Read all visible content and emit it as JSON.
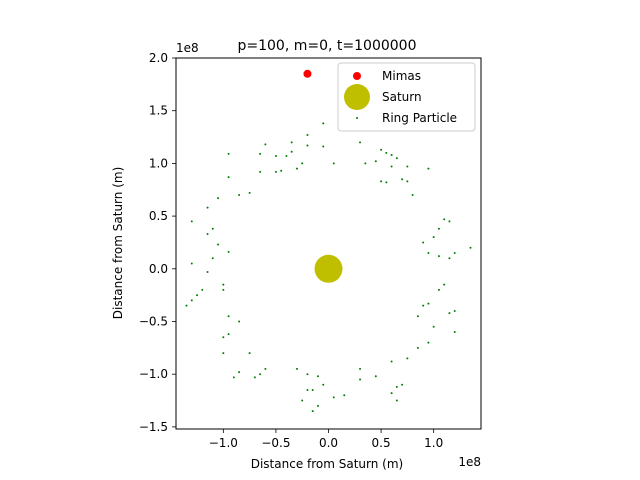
{
  "chart_data": {
    "type": "scatter",
    "title": "p=100, m=0, t=1000000",
    "xlabel": "Distance from Saturn (m)",
    "ylabel": "Distance from Saturn (m)",
    "x_offset_text": "1e8",
    "y_offset_text": "1e8",
    "xlim": [
      -1.45,
      1.45
    ],
    "ylim": [
      -1.52,
      2.0
    ],
    "xticks": [
      -1.0,
      -0.5,
      0.0,
      0.5,
      1.0
    ],
    "xtick_labels": [
      "−1.0",
      "−0.5",
      "0.0",
      "0.5",
      "1.0"
    ],
    "yticks": [
      -1.5,
      -1.0,
      -0.5,
      0.0,
      0.5,
      1.0,
      1.5,
      2.0
    ],
    "ytick_labels": [
      "−1.5",
      "−1.0",
      "−0.5",
      "0.0",
      "0.5",
      "1.0",
      "1.5",
      "2.0"
    ],
    "grid": false,
    "legend_position": "upper right",
    "series": [
      {
        "name": "Mimas",
        "color": "#ff0000",
        "marker": "circle-medium",
        "points": [
          [
            -0.2,
            1.85
          ]
        ]
      },
      {
        "name": "Saturn",
        "color": "#bfbf00",
        "marker": "circle-large",
        "points": [
          [
            0.0,
            0.0
          ]
        ]
      },
      {
        "name": "Ring Particle",
        "color": "#008000",
        "marker": "dot",
        "points": [
          [
            -0.05,
            1.38
          ],
          [
            -0.2,
            1.27
          ],
          [
            0.3,
            1.2
          ],
          [
            -0.35,
            1.2
          ],
          [
            -0.6,
            1.18
          ],
          [
            -0.2,
            1.17
          ],
          [
            -0.05,
            1.16
          ],
          [
            -0.35,
            1.11
          ],
          [
            -0.65,
            1.09
          ],
          [
            -0.95,
            1.09
          ],
          [
            -0.4,
            1.07
          ],
          [
            -0.5,
            1.07
          ],
          [
            -0.25,
            1.0
          ],
          [
            -0.3,
            0.95
          ],
          [
            -0.45,
            0.93
          ],
          [
            -0.5,
            0.92
          ],
          [
            -0.65,
            0.92
          ],
          [
            -0.95,
            0.87
          ],
          [
            0.05,
            1.0
          ],
          [
            0.5,
            1.13
          ],
          [
            0.55,
            1.1
          ],
          [
            0.6,
            1.08
          ],
          [
            0.65,
            1.05
          ],
          [
            0.45,
            1.02
          ],
          [
            0.35,
            1.0
          ],
          [
            0.6,
            0.97
          ],
          [
            0.75,
            0.97
          ],
          [
            0.95,
            0.95
          ],
          [
            0.5,
            0.83
          ],
          [
            0.55,
            0.82
          ],
          [
            0.7,
            0.85
          ],
          [
            0.75,
            0.83
          ],
          [
            0.8,
            0.7
          ],
          [
            -0.75,
            0.72
          ],
          [
            -0.85,
            0.7
          ],
          [
            -1.05,
            0.67
          ],
          [
            -1.15,
            0.58
          ],
          [
            -1.3,
            0.45
          ],
          [
            1.1,
            0.47
          ],
          [
            1.15,
            0.45
          ],
          [
            1.05,
            0.38
          ],
          [
            1.0,
            0.3
          ],
          [
            0.9,
            0.25
          ],
          [
            1.35,
            0.2
          ],
          [
            1.2,
            0.15
          ],
          [
            1.05,
            0.12
          ],
          [
            0.95,
            0.15
          ],
          [
            1.15,
            0.1
          ],
          [
            -1.1,
            0.38
          ],
          [
            -1.15,
            0.33
          ],
          [
            -1.05,
            0.23
          ],
          [
            -0.95,
            0.16
          ],
          [
            -1.1,
            0.1
          ],
          [
            -1.3,
            0.05
          ],
          [
            -1.15,
            -0.03
          ],
          [
            -1.0,
            -0.15
          ],
          [
            -1.0,
            -0.2
          ],
          [
            -1.2,
            -0.2
          ],
          [
            -1.25,
            -0.25
          ],
          [
            -1.3,
            -0.3
          ],
          [
            -1.35,
            -0.35
          ],
          [
            1.1,
            -0.15
          ],
          [
            1.05,
            -0.2
          ],
          [
            0.95,
            -0.33
          ],
          [
            0.9,
            -0.35
          ],
          [
            1.2,
            -0.4
          ],
          [
            1.15,
            -0.42
          ],
          [
            0.85,
            -0.45
          ],
          [
            1.0,
            -0.55
          ],
          [
            1.2,
            -0.6
          ],
          [
            0.95,
            -0.7
          ],
          [
            0.85,
            -0.75
          ],
          [
            0.75,
            -0.85
          ],
          [
            -0.95,
            -0.45
          ],
          [
            -0.85,
            -0.5
          ],
          [
            -0.95,
            -0.62
          ],
          [
            -1.0,
            -0.65
          ],
          [
            -1.0,
            -0.8
          ],
          [
            -0.75,
            -0.8
          ],
          [
            -0.6,
            -0.95
          ],
          [
            -0.65,
            -1.0
          ],
          [
            -0.7,
            -1.03
          ],
          [
            -0.85,
            -0.98
          ],
          [
            -0.9,
            -1.03
          ],
          [
            -0.3,
            -0.95
          ],
          [
            -0.2,
            -1.0
          ],
          [
            -0.1,
            -1.02
          ],
          [
            -0.15,
            -1.15
          ],
          [
            -0.2,
            -1.15
          ],
          [
            -0.25,
            -1.25
          ],
          [
            -0.1,
            -1.3
          ],
          [
            -0.15,
            -1.35
          ],
          [
            0.3,
            -0.95
          ],
          [
            0.3,
            -1.05
          ],
          [
            0.45,
            -1.02
          ],
          [
            0.6,
            -0.88
          ],
          [
            0.65,
            -1.12
          ],
          [
            0.7,
            -1.1
          ],
          [
            0.6,
            -1.18
          ],
          [
            0.15,
            -1.2
          ],
          [
            0.05,
            -1.22
          ],
          [
            -0.05,
            -1.1
          ],
          [
            0.65,
            -1.25
          ]
        ]
      }
    ]
  }
}
